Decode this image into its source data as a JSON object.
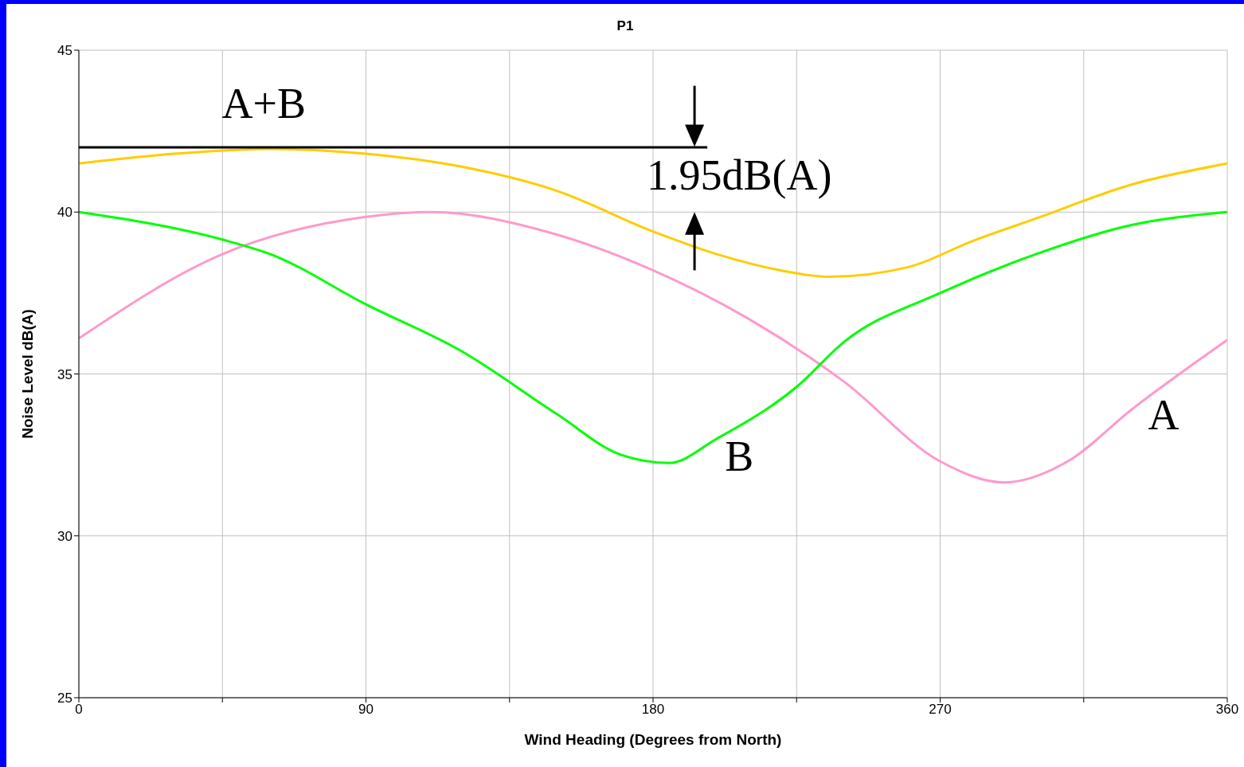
{
  "chart_data": {
    "type": "line",
    "title": "P1",
    "xlabel": "Wind Heading (Degrees from North)",
    "ylabel": "Noise Level dB(A)",
    "xlim": [
      0,
      360
    ],
    "xticks": [
      0,
      {
        "value": 45,
        "label": null
      },
      90,
      {
        "value": 135,
        "label": null
      },
      180,
      {
        "value": 225,
        "label": null
      },
      270,
      {
        "value": 315,
        "label": null
      },
      360
    ],
    "ylim": [
      25,
      45
    ],
    "yticks": [
      25,
      30,
      35,
      40,
      45
    ],
    "grid": true,
    "legend": false,
    "marker": "none",
    "line_style": "solid",
    "series": [
      {
        "name": "A",
        "color": "#ff99cc",
        "x": [
          0,
          45,
          90,
          110,
          150,
          180,
          210,
          240,
          270,
          290,
          310,
          330,
          360
        ],
        "values": [
          36.1,
          38.7,
          39.85,
          40,
          39.3,
          38.2,
          36.7,
          34.75,
          32.3,
          31.65,
          32.3,
          33.9,
          36.05
        ]
      },
      {
        "name": "B",
        "color": "#00ff00",
        "x": [
          0,
          45,
          60,
          90,
          120,
          150,
          170,
          185,
          200,
          225,
          240,
          270,
          300,
          330,
          360
        ],
        "values": [
          40,
          39.15,
          38.7,
          37.15,
          35.7,
          33.75,
          32.5,
          32.25,
          33,
          34.6,
          36,
          37.5,
          38.7,
          39.6,
          40
        ]
      },
      {
        "name": "A+B",
        "color": "#ffcc00",
        "x": [
          0,
          30,
          60,
          90,
          120,
          150,
          180,
          200,
          220,
          235,
          260,
          280,
          300,
          330,
          360
        ],
        "values": [
          41.5,
          41.8,
          41.95,
          41.8,
          41.4,
          40.65,
          39.4,
          38.7,
          38.2,
          38,
          38.3,
          39.1,
          39.8,
          40.85,
          41.5
        ]
      },
      {
        "type": "line",
        "color": "#000000",
        "x": [
          0,
          197
        ],
        "values": [
          42,
          42
        ]
      }
    ],
    "annotations": [
      {
        "text": "1.95dB(A)",
        "x": 193,
        "y": 42
      }
    ]
  }
}
